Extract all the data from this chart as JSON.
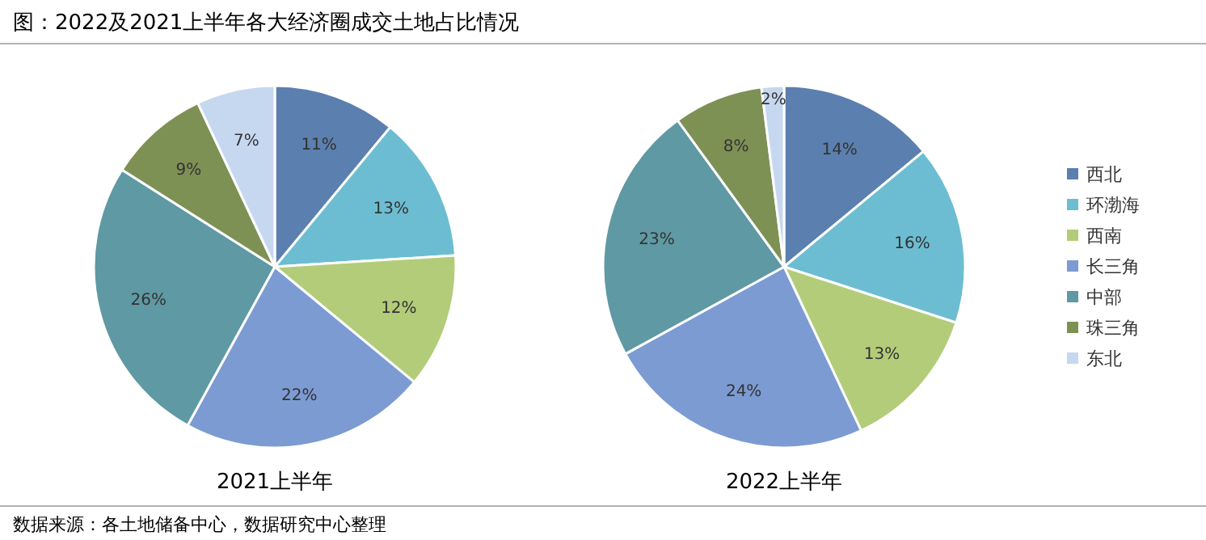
{
  "chart_data": [
    {
      "type": "pie",
      "title": "图：2022及2021上半年各大经济圈成交土地占比情况",
      "xlabel": "2021上半年",
      "categories": [
        null,
        null,
        null,
        null,
        null,
        null,
        null
      ],
      "values": [
        11,
        13,
        12,
        22,
        26,
        9,
        7
      ],
      "value_labels": [
        "11%",
        "13%",
        "12%",
        "22%",
        "26%",
        "9%",
        "7%"
      ],
      "colors": [
        "#5b7fae",
        "#6cbdd2",
        "#b3cc79",
        "#7b9bd2",
        "#5f99a3",
        "#7e9155",
        "#c6d8ef"
      ],
      "legend": false
    },
    {
      "type": "pie",
      "xlabel": "2022上半年",
      "categories": [
        "西北",
        "环渤海",
        "西南",
        "长三角",
        "中部",
        "珠三角",
        "东北"
      ],
      "values": [
        14,
        16,
        13,
        24,
        23,
        8,
        2
      ],
      "value_labels": [
        "14%",
        "16%",
        "13%",
        "24%",
        "23%",
        "8%",
        "2%"
      ],
      "colors": [
        "#5b7fae",
        "#6cbdd2",
        "#b3cc79",
        "#7b9bd2",
        "#5f99a3",
        "#7e9155",
        "#c6d8ef"
      ],
      "legend": "right",
      "annotations": [
        "数据来源：各土地储备中心，数据研究中心整理"
      ]
    }
  ]
}
